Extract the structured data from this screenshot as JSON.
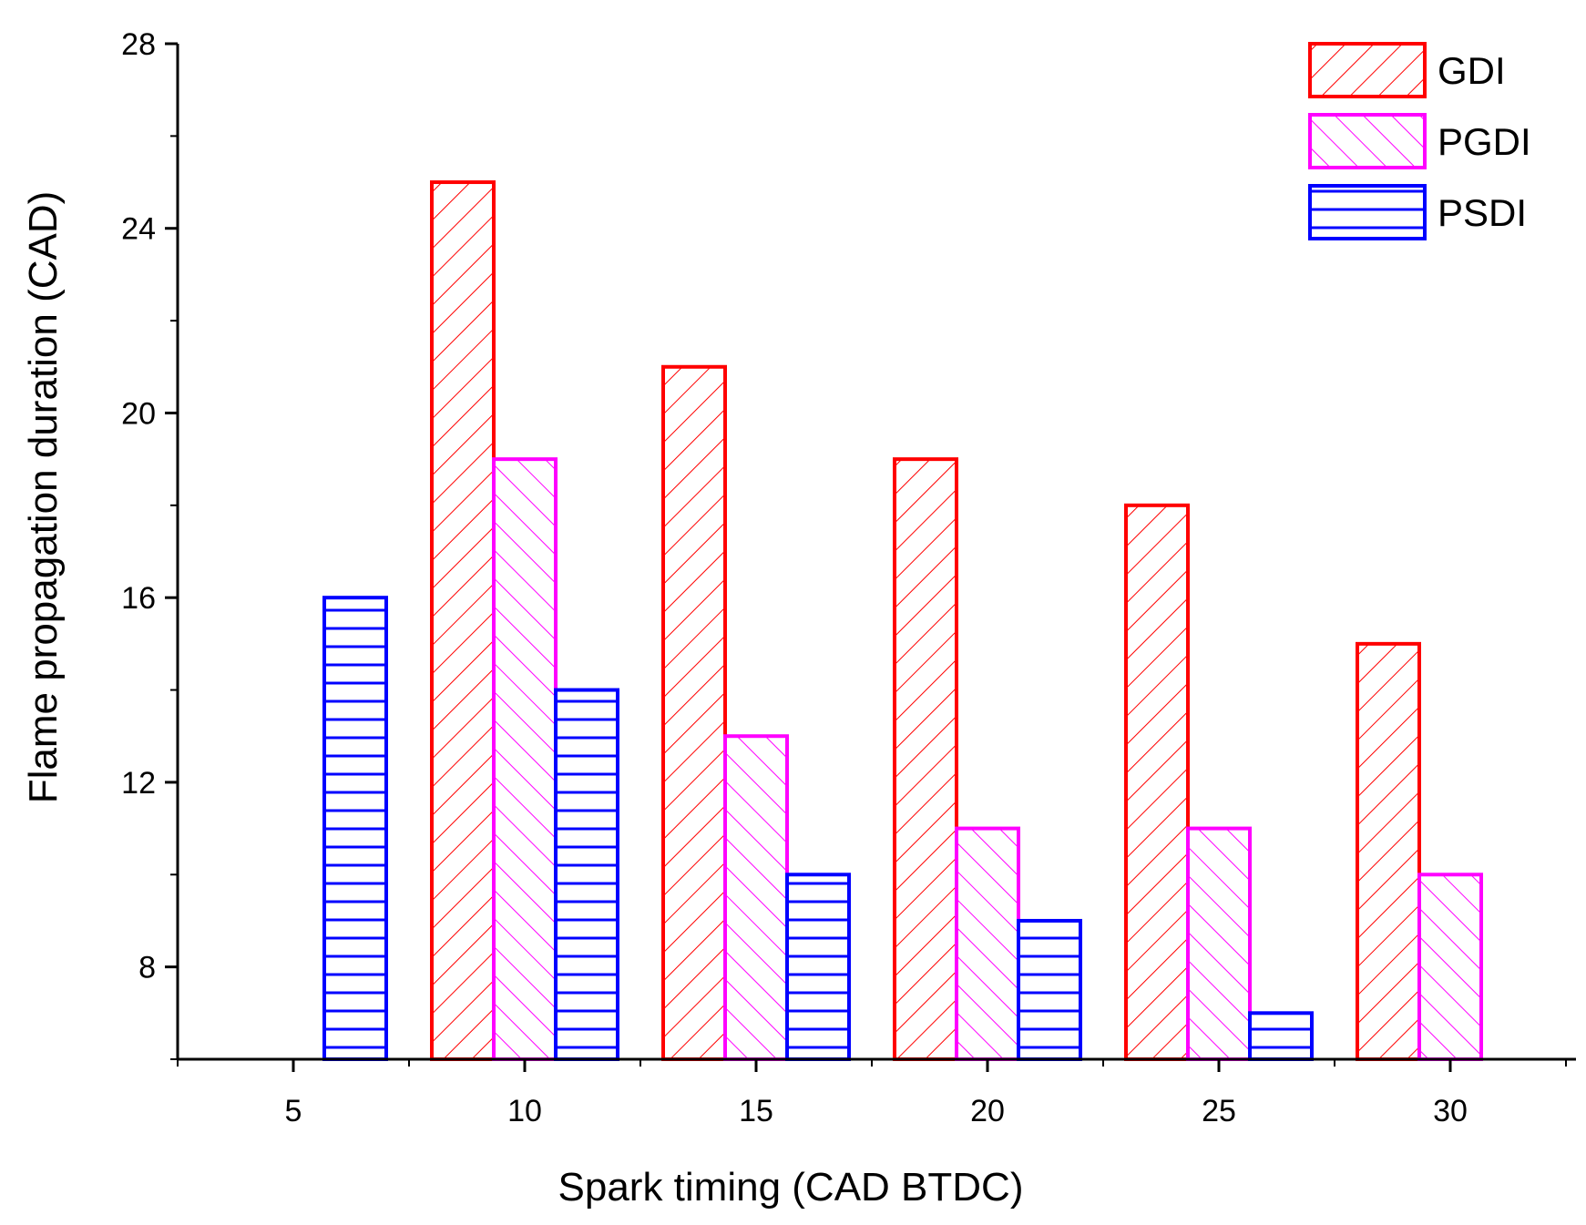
{
  "chart_data": {
    "type": "bar",
    "title": "",
    "xlabel": "Spark timing (CAD BTDC)",
    "ylabel": "Flame propagation duration (CAD)",
    "categories": [
      "5",
      "10",
      "15",
      "20",
      "25",
      "30"
    ],
    "ylim": [
      6,
      28
    ],
    "yticks": [
      8,
      12,
      16,
      20,
      24,
      28
    ],
    "grid": false,
    "legend_position": "top-right",
    "series": [
      {
        "name": "GDI",
        "color": "#ff0000",
        "pattern": "forward-diagonal",
        "values": [
          null,
          25,
          21,
          19,
          18,
          15
        ]
      },
      {
        "name": "PGDI",
        "color": "#ff00ff",
        "pattern": "backward-diagonal",
        "values": [
          null,
          19,
          13,
          11,
          11,
          10
        ]
      },
      {
        "name": "PSDI",
        "color": "#0000ff",
        "pattern": "horizontal",
        "values": [
          16,
          14,
          10,
          9,
          7,
          null
        ]
      }
    ]
  }
}
